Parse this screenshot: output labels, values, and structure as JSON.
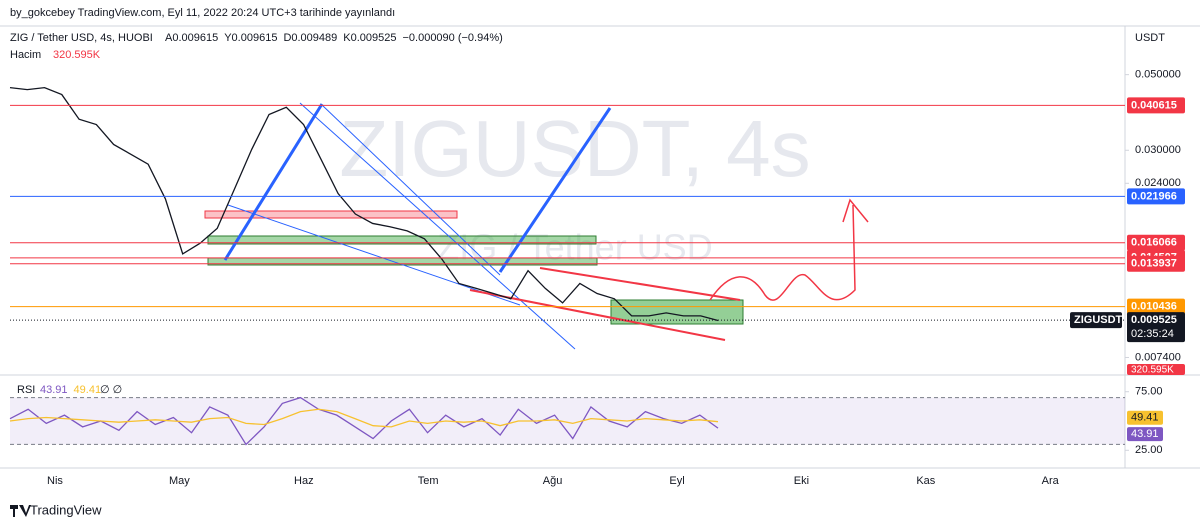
{
  "header": {
    "published": "by_gokcebey TradingView.com, Eyl 11, 2022 20:24 UTC+3 tarihinde yayınlandı"
  },
  "chart_data": [
    {
      "type": "line",
      "title": "ZIG / Tether USD, 4s, HUOBI",
      "legend_values": [
        "A0.009615",
        "Y0.009615",
        "D0.009489",
        "K0.009525",
        "−0.000090 (−0.94%)"
      ],
      "volume_label": "Hacim",
      "volume": "320.595K",
      "watermark": "ZIGUSDT, 4s",
      "watermark_subtitle": "ZIG / Tether USD",
      "y_axis_label": "USDT",
      "log_scale": true,
      "ylim": [
        0.0068,
        0.0676
      ],
      "yticks": [
        {
          "value": 0.05,
          "label": "0.050000"
        },
        {
          "value": 0.03,
          "label": "0.030000"
        },
        {
          "value": 0.024,
          "label": "0.024000"
        },
        {
          "value": 0.0074,
          "label": "0.007400"
        }
      ],
      "x_axis_labels": [
        "Nis",
        "May",
        "Haz",
        "Tem",
        "Ağu",
        "Eyl",
        "Eki",
        "Kas",
        "Ara"
      ],
      "series": [
        {
          "color": "#131722",
          "values": [
            0.0458,
            0.0452,
            0.0458,
            0.0437,
            0.037,
            0.0357,
            0.0312,
            0.0292,
            0.0273,
            0.0216,
            0.0149,
            0.016,
            0.0177,
            0.0231,
            0.0302,
            0.0382,
            0.0401,
            0.0357,
            0.0283,
            0.0224,
            0.0195,
            0.0183,
            0.0179,
            0.0174,
            0.0165,
            0.0144,
            0.0122,
            0.0118,
            0.0114,
            0.011,
            0.0133,
            0.0118,
            0.0107,
            0.0122,
            0.0114,
            0.011,
            0.0098,
            0.0098,
            0.01,
            0.0098,
            0.0098,
            0.0095
          ]
        }
      ],
      "levels": [
        {
          "value": 0.040615,
          "color": "#f23645"
        },
        {
          "value": 0.021966,
          "color": "#2962ff"
        },
        {
          "value": 0.016066,
          "color": "#f23645"
        },
        {
          "value": 0.014507,
          "color": "#f23645"
        },
        {
          "value": 0.013937,
          "color": "#f23645"
        },
        {
          "value": 0.010436,
          "color": "#ff9800"
        }
      ],
      "current": {
        "symbol": "ZIGUSDT",
        "value": 0.009525,
        "countdown": "02:35:24",
        "color": "#131722"
      }
    },
    {
      "type": "line",
      "title": "RSI",
      "legend_extra": "∅ ∅",
      "ylim": [
        15,
        85
      ],
      "yticks": [
        {
          "value": 75,
          "label": "75.00"
        },
        {
          "value": 25,
          "label": "25.00"
        }
      ],
      "band": [
        30,
        70
      ],
      "series": [
        {
          "color": "#7e57c2",
          "values": [
            52,
            60,
            48,
            55,
            45,
            50,
            42,
            58,
            47,
            53,
            40,
            62,
            55,
            30,
            45,
            65,
            70,
            60,
            55,
            45,
            35,
            50,
            60,
            40,
            55,
            45,
            52,
            38,
            60,
            48,
            55,
            35,
            62,
            50,
            45,
            58,
            52,
            48,
            55,
            43.91
          ]
        },
        {
          "color": "#f7c12f",
          "values": [
            50,
            52,
            53,
            52,
            51,
            50,
            49,
            50,
            51,
            50,
            49,
            52,
            53,
            48,
            47,
            52,
            58,
            60,
            58,
            52,
            46,
            45,
            50,
            48,
            50,
            49,
            50,
            46,
            50,
            50,
            51,
            48,
            52,
            51,
            50,
            52,
            51,
            50,
            51,
            49.41
          ]
        }
      ]
    }
  ],
  "footer": {
    "brand": "TradingView"
  }
}
